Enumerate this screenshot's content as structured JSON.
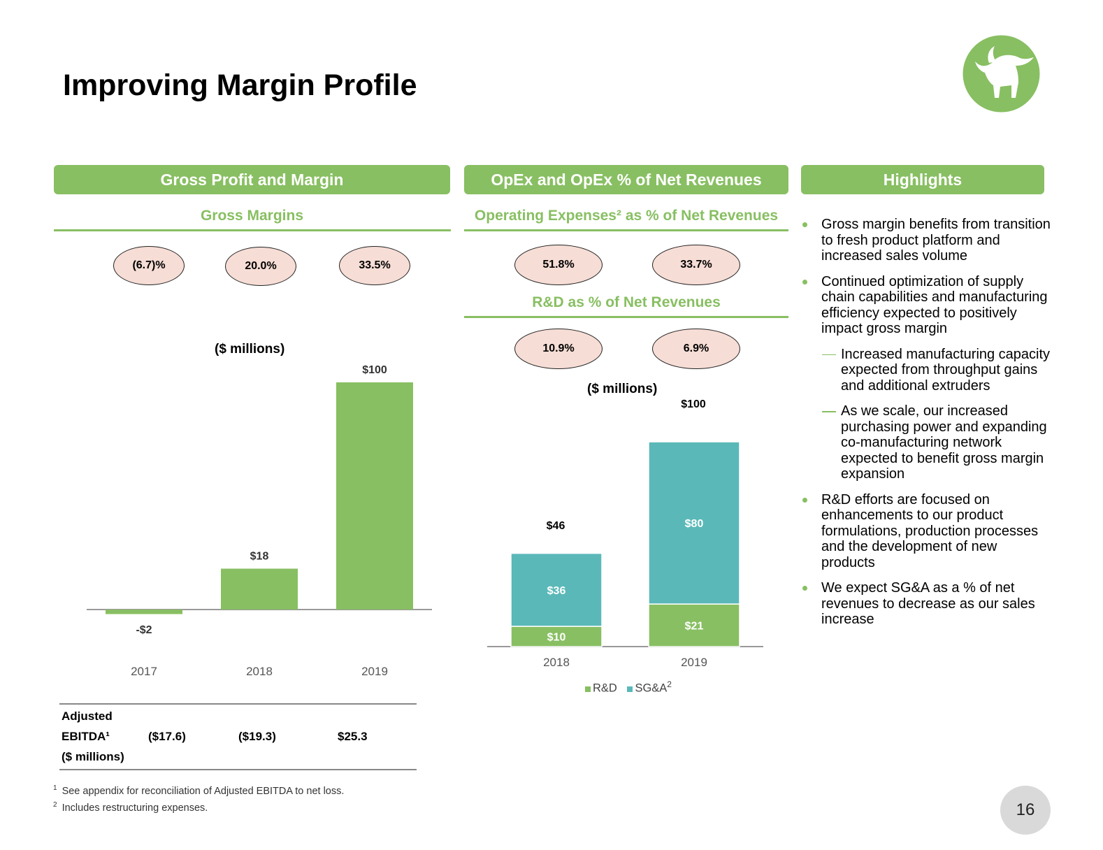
{
  "title": "Improving Margin Profile",
  "colors": {
    "green": "#88bf62",
    "teal": "#5bb8b8",
    "oval_fill": "#f6ddd5"
  },
  "logo": {
    "icon": "bull-logo-icon"
  },
  "panels": {
    "gross": {
      "header": "Gross Profit and Margin",
      "subheader": "Gross Margins",
      "margins": [
        "(6.7)%",
        "20.0%",
        "33.5%"
      ],
      "units": "($ millions)"
    },
    "opex": {
      "header": "OpEx and OpEx % of Net Revenues",
      "subheader": "Operating Expenses² as % of Net Revenues",
      "opex_pcts": [
        "51.8%",
        "33.7%"
      ],
      "rd_subheader": "R&D as % of Net Revenues",
      "rd_pcts": [
        "10.9%",
        "6.9%"
      ],
      "units": "($ millions)"
    },
    "highlights": {
      "header": "Highlights",
      "items": [
        {
          "level": 1,
          "text": "Gross margin benefits from transition to fresh product platform and increased sales volume"
        },
        {
          "level": 1,
          "text": "Continued optimization of supply chain capabilities and manufacturing efficiency expected to positively impact gross margin"
        },
        {
          "level": 2,
          "text": "Increased manufacturing capacity expected from throughput gains and additional extruders"
        },
        {
          "level": 2,
          "text": "As we scale, our increased purchasing power and expanding co-manufacturing network expected to benefit gross margin expansion"
        },
        {
          "level": 1,
          "text": "R&D efforts are focused on enhancements to our product formulations, production processes and the development of new products"
        },
        {
          "level": 1,
          "text": "We expect SG&A as a % of net revenues to decrease as our sales increase"
        }
      ]
    }
  },
  "ebitda": {
    "label_line1": "Adjusted",
    "label_line2": "EBITDA¹",
    "label_line3": "($ millions)",
    "values": [
      "($17.6)",
      "($19.3)",
      "$25.3"
    ]
  },
  "footnotes": [
    {
      "mark": "1",
      "text": "See appendix for reconciliation of Adjusted EBITDA to net loss."
    },
    {
      "mark": "2",
      "text": "Includes restructuring expenses."
    }
  ],
  "page_number": "16",
  "chart_data": [
    {
      "type": "bar",
      "title": "Gross Profit ($ millions)",
      "categories": [
        "2017",
        "2018",
        "2019"
      ],
      "values": [
        -2,
        18,
        100
      ],
      "labels": [
        "-$2",
        "$18",
        "$100"
      ]
    },
    {
      "type": "bar",
      "stacked": true,
      "title": "OpEx ($ millions)",
      "categories": [
        "2018",
        "2019"
      ],
      "series": [
        {
          "name": "R&D",
          "values": [
            10,
            21
          ],
          "labels": [
            "$10",
            "$21"
          ]
        },
        {
          "name": "SG&A",
          "values": [
            36,
            80
          ],
          "labels": [
            "$36",
            "$80"
          ]
        }
      ],
      "totals": [
        46,
        100
      ],
      "total_labels": [
        "$46",
        "$100"
      ],
      "legend": [
        "R&D",
        "SG&A"
      ],
      "legend_suffix": "2"
    }
  ]
}
